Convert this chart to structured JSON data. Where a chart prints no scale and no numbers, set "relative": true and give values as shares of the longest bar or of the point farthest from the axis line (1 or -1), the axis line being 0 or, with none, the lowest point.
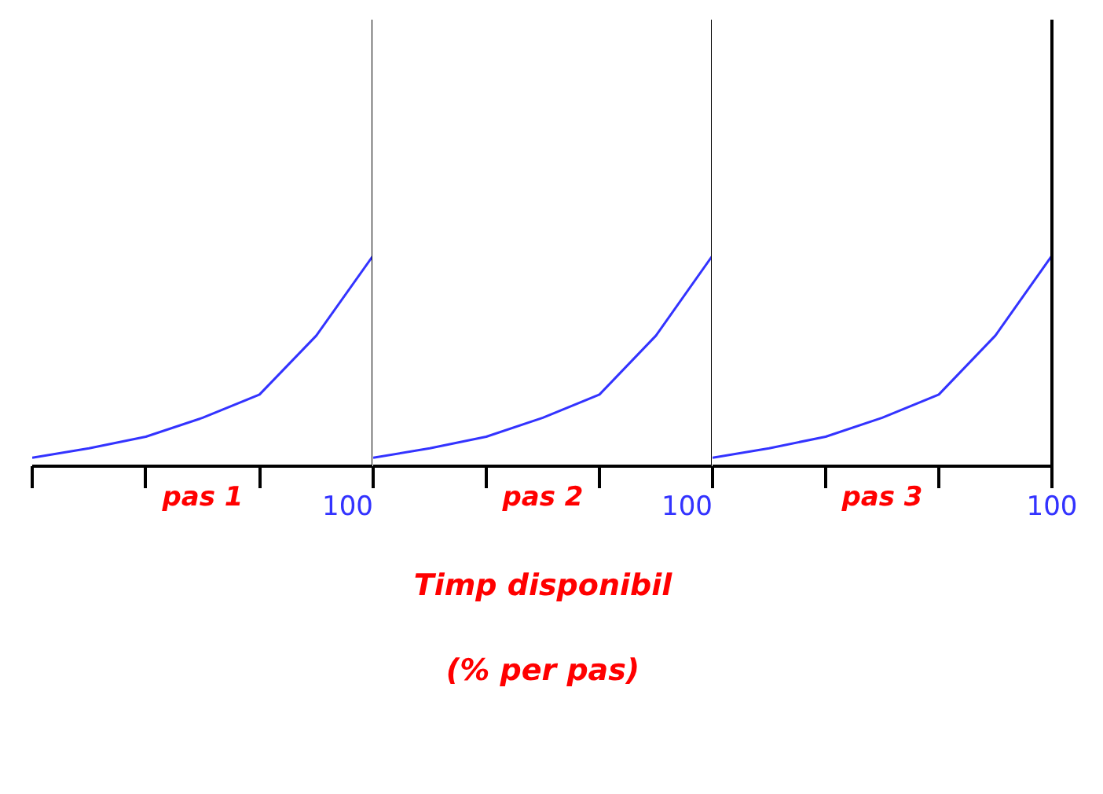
{
  "chart_data": [
    {
      "type": "line",
      "relative": true,
      "xlabel": "pas 1",
      "categories": [
        null,
        null,
        null,
        null,
        null,
        null,
        null
      ],
      "series": [
        {
          "color": "#3333ff",
          "values": [
            0.04,
            0.085,
            0.14,
            0.23,
            0.34,
            0.62,
            1
          ]
        }
      ],
      "marker": "none",
      "line_style": "solid",
      "annotations": [
        "100"
      ]
    },
    {
      "type": "line",
      "relative": true,
      "xlabel": "pas 2",
      "categories": [
        null,
        null,
        null,
        null,
        null,
        null,
        null
      ],
      "series": [
        {
          "color": "#3333ff",
          "values": [
            0.04,
            0.085,
            0.14,
            0.23,
            0.34,
            0.62,
            1
          ]
        }
      ],
      "marker": "none",
      "line_style": "solid",
      "annotations": [
        "100",
        "Timp disponibil",
        "(% per pas)"
      ]
    },
    {
      "type": "line",
      "relative": true,
      "xlabel": "pas 3",
      "categories": [
        null,
        null,
        null,
        null,
        null,
        null,
        null
      ],
      "series": [
        {
          "color": "#3333ff",
          "values": [
            0.04,
            0.085,
            0.14,
            0.23,
            0.34,
            0.62,
            1
          ]
        }
      ],
      "marker": "none",
      "line_style": "solid",
      "annotations": [
        "100"
      ]
    }
  ]
}
